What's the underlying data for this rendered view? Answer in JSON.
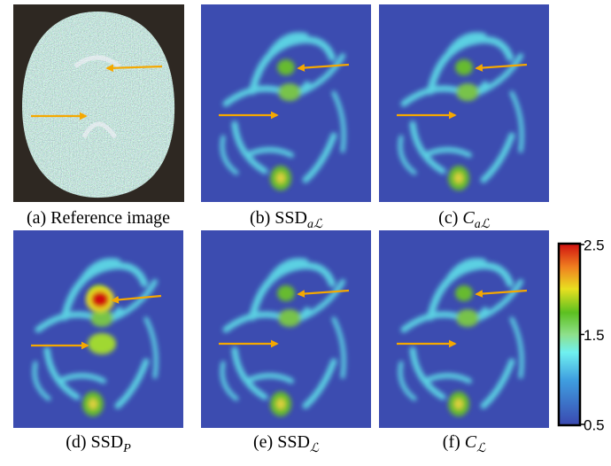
{
  "figure": {
    "panels": [
      {
        "label": "(a)",
        "name": "Reference image"
      },
      {
        "label": "(b)",
        "name": "SSD",
        "sub": "aℒ"
      },
      {
        "label": "(c)",
        "name": "C",
        "sub": "aℒ"
      },
      {
        "label": "(d)",
        "name": "SSD",
        "sub": "P"
      },
      {
        "label": "(e)",
        "name": "SSD",
        "sub": "ℒ"
      },
      {
        "label": "(f)",
        "name": "C",
        "sub": "ℒ"
      }
    ],
    "colorbar": {
      "range": [
        0.5,
        2.5
      ],
      "ticks": [
        0.5,
        1.5,
        2.5
      ]
    }
  }
}
